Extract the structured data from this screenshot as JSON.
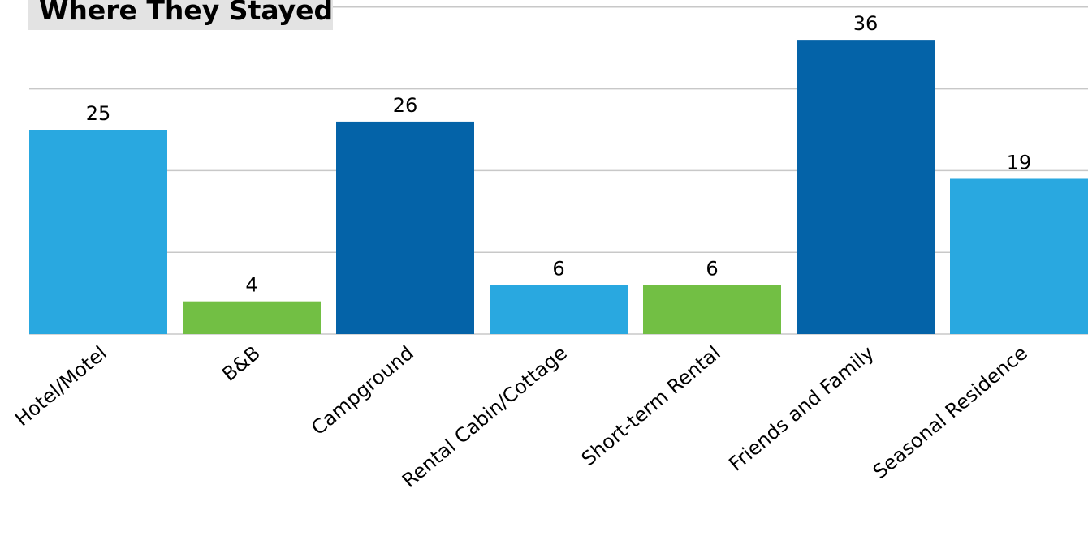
{
  "chart_data": {
    "type": "bar",
    "title": "Where They Stayed",
    "categories": [
      "Hotel/Motel",
      "B&B",
      "Campground",
      "Rental Cabin/Cottage",
      "Short-term Rental",
      "Friends and Family",
      "Seasonal Residence"
    ],
    "values": [
      25,
      4,
      26,
      6,
      6,
      36,
      19
    ],
    "bar_colors": [
      "#29a8e0",
      "#72bf44",
      "#0463a8",
      "#29a8e0",
      "#72bf44",
      "#0463a8",
      "#29a8e0"
    ],
    "gridline_values": [
      10,
      20,
      30,
      40
    ],
    "ylim": [
      0,
      40
    ],
    "grid": true,
    "legend": "none",
    "xlabel": "",
    "ylabel": ""
  }
}
